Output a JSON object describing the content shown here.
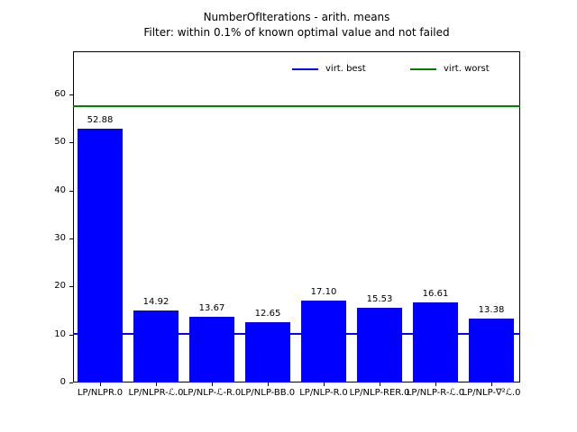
{
  "chart_data": {
    "type": "bar",
    "title": "NumberOfIterations - arith. means",
    "subtitle": "Filter: within 0.1% of known optimal value and not failed",
    "categories": [
      "LP/NLPR.0",
      "LP/NLPR-ℒ.0",
      "LP/NLP-ℒ-R.0",
      "LP/NLP-BB.0",
      "LP/NLP-R.0",
      "LP/NLP-RER.0",
      "LP/NLP-R-ℒ.0",
      "LP/NLP-∇²ℒ.0"
    ],
    "values": [
      52.88,
      14.92,
      13.67,
      12.65,
      17.1,
      15.53,
      16.61,
      13.38
    ],
    "bar_value_labels": [
      "52.88",
      "14.92",
      "13.67",
      "12.65",
      "17.10",
      "15.53",
      "16.61",
      "13.38"
    ],
    "bar_color": "#0000ff",
    "xlabel": "",
    "ylabel": "",
    "yticks": [
      0,
      10,
      20,
      30,
      40,
      50,
      60
    ],
    "ylim": [
      0,
      69
    ],
    "grid": false,
    "legend_position": "upper right, horizontal row inside axes, no frame",
    "hlines": [
      {
        "label": "virt. best",
        "value": 10.2,
        "color": "#0000ff"
      },
      {
        "label": "virt. worst",
        "value": 57.5,
        "color": "#008000"
      }
    ]
  }
}
